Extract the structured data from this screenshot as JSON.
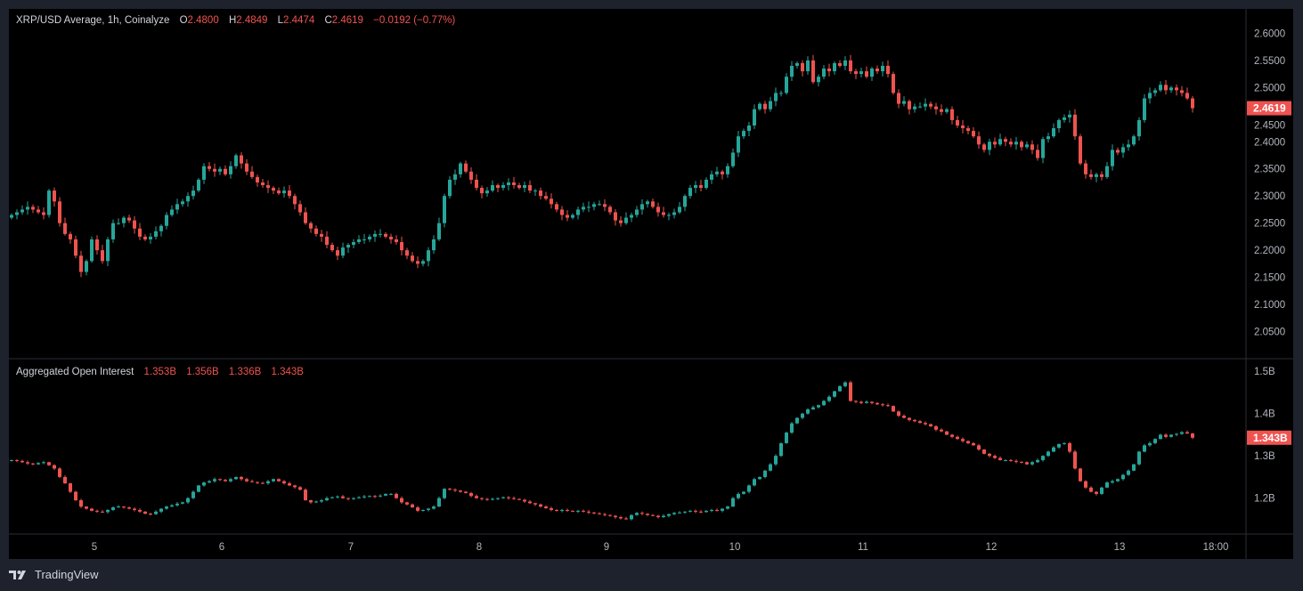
{
  "legend": {
    "symbol": "XRP/USD Average, 1h, Coinalyze",
    "open_label": "O",
    "open": "2.4800",
    "high_label": "H",
    "high": "2.4849",
    "low_label": "L",
    "low": "2.4474",
    "close_label": "C",
    "close": "2.4619",
    "change": "−0.0192 (−0.77%)"
  },
  "oi_legend": {
    "title": "Aggregated Open Interest",
    "open": "1.353B",
    "high": "1.356B",
    "low": "1.336B",
    "close": "1.343B"
  },
  "branding": {
    "name": "TradingView"
  },
  "colors": {
    "up": "#26a69a",
    "down": "#ef5350",
    "background": "#000000",
    "frame": "#1e222d"
  },
  "chart_data": [
    {
      "type": "candlestick",
      "title": "XRP/USD Average, 1h, Coinalyze",
      "interval": "1h",
      "first_bar": "4 08:00",
      "ylim": [
        2.0,
        2.645
      ],
      "yticks": [
        "2.6000",
        "2.5500",
        "2.5000",
        "2.4500",
        "2.4000",
        "2.3500",
        "2.3000",
        "2.2500",
        "2.2000",
        "2.1500",
        "2.1000",
        "2.0500"
      ],
      "last_price_label": "2.4619",
      "closes": [
        2.265,
        2.27,
        2.275,
        2.28,
        2.275,
        2.27,
        2.265,
        2.31,
        2.29,
        2.25,
        2.23,
        2.22,
        2.19,
        2.16,
        2.18,
        2.22,
        2.2,
        2.18,
        2.22,
        2.25,
        2.25,
        2.26,
        2.255,
        2.24,
        2.225,
        2.22,
        2.225,
        2.235,
        2.245,
        2.265,
        2.275,
        2.285,
        2.29,
        2.3,
        2.31,
        2.33,
        2.355,
        2.35,
        2.345,
        2.35,
        2.34,
        2.355,
        2.375,
        2.36,
        2.345,
        2.335,
        2.325,
        2.32,
        2.315,
        2.31,
        2.305,
        2.31,
        2.3,
        2.285,
        2.27,
        2.25,
        2.24,
        2.23,
        2.225,
        2.21,
        2.2,
        2.19,
        2.205,
        2.21,
        2.215,
        2.22,
        2.22,
        2.225,
        2.23,
        2.23,
        2.225,
        2.22,
        2.215,
        2.2,
        2.19,
        2.18,
        2.175,
        2.18,
        2.2,
        2.22,
        2.25,
        2.3,
        2.33,
        2.34,
        2.36,
        2.345,
        2.33,
        2.315,
        2.305,
        2.31,
        2.32,
        2.315,
        2.32,
        2.325,
        2.32,
        2.315,
        2.32,
        2.31,
        2.31,
        2.3,
        2.295,
        2.285,
        2.275,
        2.265,
        2.26,
        2.265,
        2.275,
        2.28,
        2.28,
        2.285,
        2.285,
        2.28,
        2.27,
        2.255,
        2.25,
        2.26,
        2.265,
        2.275,
        2.285,
        2.29,
        2.28,
        2.27,
        2.265,
        2.265,
        2.27,
        2.28,
        2.3,
        2.315,
        2.32,
        2.315,
        2.33,
        2.34,
        2.345,
        2.34,
        2.355,
        2.38,
        2.41,
        2.42,
        2.43,
        2.46,
        2.47,
        2.46,
        2.475,
        2.49,
        2.49,
        2.52,
        2.54,
        2.545,
        2.53,
        2.55,
        2.51,
        2.52,
        2.535,
        2.53,
        2.545,
        2.54,
        2.55,
        2.53,
        2.525,
        2.53,
        2.52,
        2.535,
        2.53,
        2.54,
        2.525,
        2.49,
        2.47,
        2.475,
        2.46,
        2.465,
        2.465,
        2.47,
        2.465,
        2.46,
        2.455,
        2.46,
        2.44,
        2.43,
        2.425,
        2.42,
        2.41,
        2.395,
        2.385,
        2.4,
        2.395,
        2.405,
        2.4,
        2.395,
        2.4,
        2.39,
        2.395,
        2.385,
        2.37,
        2.405,
        2.41,
        2.425,
        2.44,
        2.445,
        2.45,
        2.41,
        2.36,
        2.34,
        2.335,
        2.34,
        2.335,
        2.355,
        2.385,
        2.38,
        2.39,
        2.395,
        2.41,
        2.44,
        2.48,
        2.49,
        2.495,
        2.505,
        2.495,
        2.5,
        2.495,
        2.49,
        2.48,
        2.4619
      ]
    },
    {
      "type": "candlestick",
      "title": "Aggregated Open Interest",
      "unit": "B",
      "ylim": [
        1.115,
        1.53
      ],
      "yticks": [
        "1.5B",
        "1.4B",
        "1.3B",
        "1.2B"
      ],
      "last_value_label": "1.343B",
      "closes": [
        1.29,
        1.288,
        1.285,
        1.282,
        1.28,
        1.283,
        1.285,
        1.278,
        1.27,
        1.25,
        1.235,
        1.215,
        1.195,
        1.18,
        1.175,
        1.17,
        1.168,
        1.167,
        1.172,
        1.178,
        1.18,
        1.178,
        1.175,
        1.172,
        1.168,
        1.163,
        1.162,
        1.168,
        1.175,
        1.18,
        1.183,
        1.187,
        1.19,
        1.2,
        1.215,
        1.23,
        1.237,
        1.24,
        1.245,
        1.243,
        1.24,
        1.245,
        1.25,
        1.245,
        1.24,
        1.238,
        1.236,
        1.235,
        1.24,
        1.245,
        1.24,
        1.235,
        1.23,
        1.226,
        1.22,
        1.195,
        1.19,
        1.192,
        1.195,
        1.2,
        1.202,
        1.204,
        1.2,
        1.198,
        1.2,
        1.202,
        1.204,
        1.205,
        1.204,
        1.206,
        1.21,
        1.21,
        1.2,
        1.19,
        1.185,
        1.178,
        1.17,
        1.172,
        1.175,
        1.18,
        1.2,
        1.222,
        1.22,
        1.218,
        1.215,
        1.212,
        1.205,
        1.2,
        1.198,
        1.196,
        1.198,
        1.2,
        1.202,
        1.2,
        1.198,
        1.196,
        1.192,
        1.188,
        1.185,
        1.18,
        1.176,
        1.172,
        1.17,
        1.172,
        1.17,
        1.168,
        1.17,
        1.168,
        1.166,
        1.164,
        1.162,
        1.16,
        1.158,
        1.155,
        1.152,
        1.15,
        1.16,
        1.165,
        1.163,
        1.16,
        1.158,
        1.155,
        1.158,
        1.162,
        1.165,
        1.166,
        1.168,
        1.17,
        1.168,
        1.167,
        1.17,
        1.172,
        1.17,
        1.175,
        1.18,
        1.2,
        1.21,
        1.215,
        1.23,
        1.245,
        1.25,
        1.265,
        1.28,
        1.3,
        1.33,
        1.355,
        1.377,
        1.39,
        1.4,
        1.41,
        1.415,
        1.42,
        1.43,
        1.44,
        1.453,
        1.465,
        1.474,
        1.43,
        1.428,
        1.425,
        1.428,
        1.425,
        1.422,
        1.42,
        1.418,
        1.405,
        1.395,
        1.39,
        1.385,
        1.382,
        1.378,
        1.375,
        1.37,
        1.362,
        1.358,
        1.35,
        1.345,
        1.34,
        1.335,
        1.33,
        1.325,
        1.315,
        1.305,
        1.3,
        1.295,
        1.29,
        1.29,
        1.288,
        1.286,
        1.285,
        1.28,
        1.285,
        1.29,
        1.3,
        1.31,
        1.32,
        1.328,
        1.33,
        1.31,
        1.27,
        1.24,
        1.225,
        1.215,
        1.21,
        1.225,
        1.237,
        1.24,
        1.245,
        1.255,
        1.265,
        1.28,
        1.31,
        1.325,
        1.33,
        1.34,
        1.35,
        1.345,
        1.35,
        1.352,
        1.356,
        1.353,
        1.343
      ]
    }
  ],
  "time_axis": {
    "labels": [
      "5",
      "6",
      "7",
      "8",
      "9",
      "10",
      "11",
      "12",
      "13",
      "18:00"
    ]
  }
}
